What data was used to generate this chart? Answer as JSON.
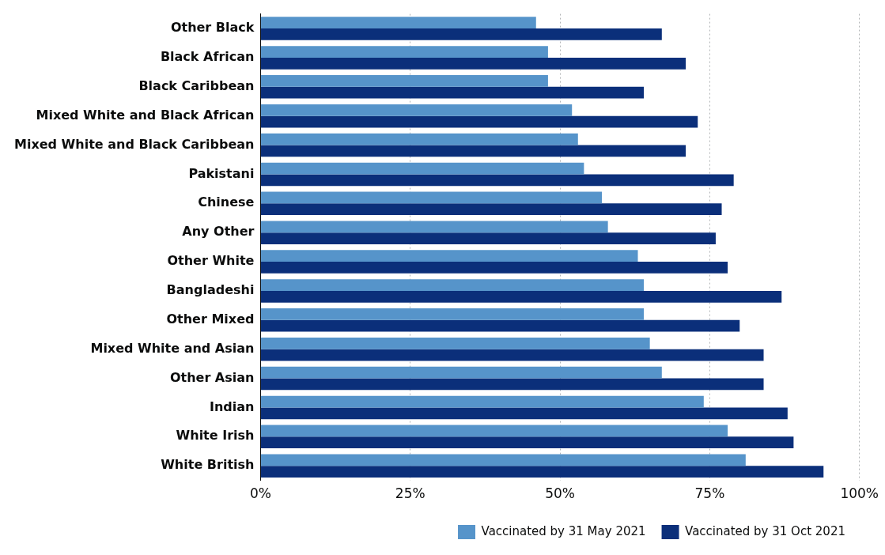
{
  "chart_data": {
    "type": "bar",
    "orientation": "horizontal",
    "categories": [
      "Other Black",
      "Black African",
      "Black Caribbean",
      "Mixed White and Black African",
      "Mixed White and Black Caribbean",
      "Pakistani",
      "Chinese",
      "Any Other",
      "Other White",
      "Bangladeshi",
      "Other Mixed",
      "Mixed White and Asian",
      "Other Asian",
      "Indian",
      "White Irish",
      "White British"
    ],
    "series": [
      {
        "name": "Vaccinated by 31 May 2021",
        "color": "#5694ca",
        "values": [
          46,
          48,
          48,
          52,
          53,
          54,
          57,
          58,
          63,
          64,
          64,
          65,
          67,
          74,
          78,
          81
        ]
      },
      {
        "name": "Vaccinated by 31 Oct 2021",
        "color": "#0b2f7a",
        "values": [
          67,
          71,
          64,
          73,
          71,
          79,
          77,
          76,
          78,
          87,
          80,
          84,
          84,
          88,
          89,
          94
        ]
      }
    ],
    "xlim": [
      0,
      100
    ],
    "xticks": [
      {
        "value": 0,
        "label": "0%"
      },
      {
        "value": 25,
        "label": "25%"
      },
      {
        "value": 50,
        "label": "50%"
      },
      {
        "value": 75,
        "label": "75%"
      },
      {
        "value": 100,
        "label": "100%"
      }
    ],
    "grid": "x",
    "legend": "bottom"
  }
}
